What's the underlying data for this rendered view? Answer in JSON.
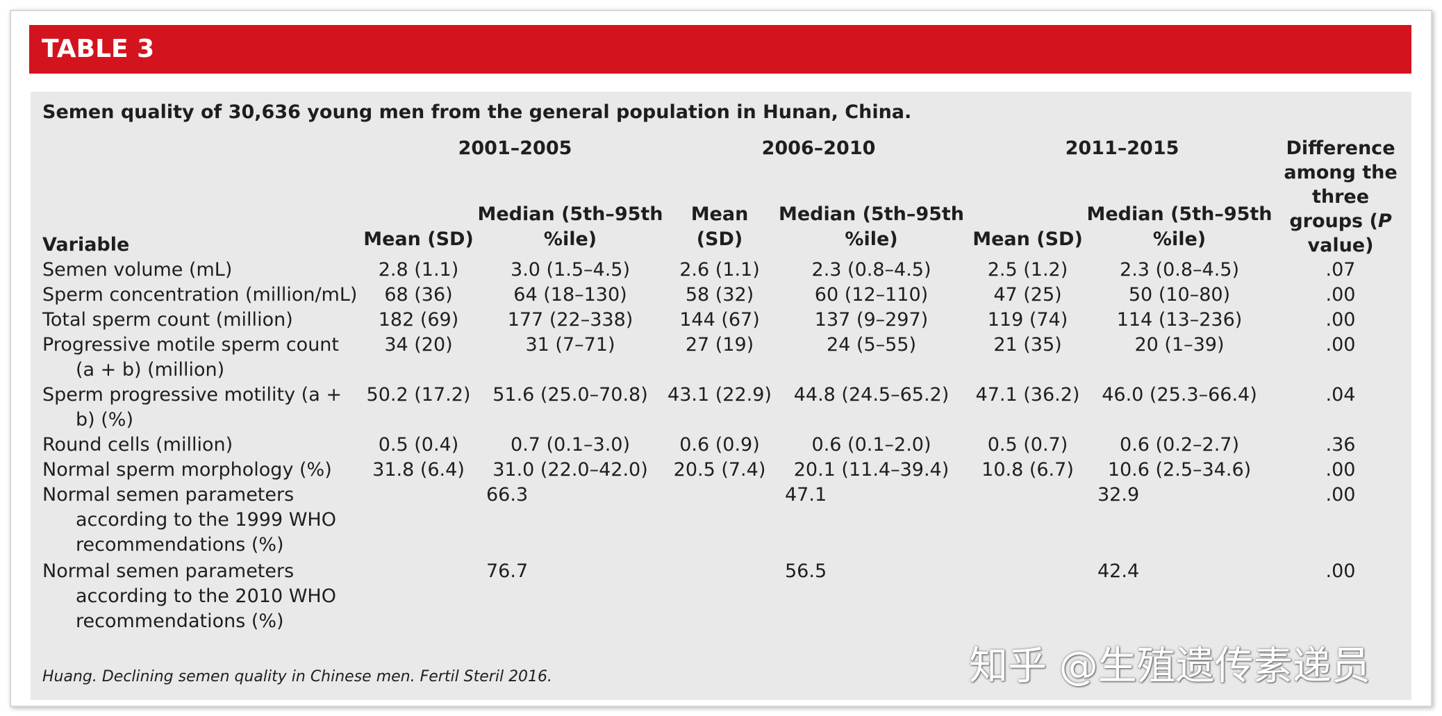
{
  "header": {
    "label": "TABLE 3"
  },
  "caption": "Semen quality of 30,636 young men from the general population in Hunan, China.",
  "table": {
    "periods": [
      "2001–2005",
      "2006–2010",
      "2011–2015"
    ],
    "variable_header": "Variable",
    "period_columns": [
      "Mean (SD)",
      "Median (5th–95th %ile)",
      "Mean (SD)",
      "Median (5th–95th %ile)",
      "Mean (SD)",
      "Median (5th–95th %ile)"
    ],
    "p_header": {
      "before": "Difference among the three groups (",
      "italic": "P",
      "after": " value)"
    },
    "rows": [
      {
        "variable": "Semen volume (mL)",
        "cells": [
          "2.8 (1.1)",
          "3.0 (1.5–4.5)",
          "2.6 (1.1)",
          "2.3 (0.8–4.5)",
          "2.5 (1.2)",
          "2.3 (0.8–4.5)"
        ],
        "p": ".07"
      },
      {
        "variable": "Sperm concentration (million/mL)",
        "cells": [
          "68 (36)",
          "64 (18–130)",
          "58 (32)",
          "60 (12–110)",
          "47 (25)",
          "50 (10–80)"
        ],
        "p": ".00"
      },
      {
        "variable": "Total sperm count (million)",
        "cells": [
          "182 (69)",
          "177 (22–338)",
          "144 (67)",
          "137 (9–297)",
          "119 (74)",
          "114 (13–236)"
        ],
        "p": ".00"
      },
      {
        "variable": "Progressive motile sperm count (a + b) (million)",
        "cells": [
          "34 (20)",
          "31 (7–71)",
          "27 (19)",
          "24 (5–55)",
          "21 (35)",
          "20 (1–39)"
        ],
        "p": ".00"
      },
      {
        "variable": "Sperm progressive motility (a + b) (%)",
        "cells": [
          "50.2 (17.2)",
          "51.6 (25.0–70.8)",
          "43.1 (22.9)",
          "44.8 (24.5–65.2)",
          "47.1 (36.2)",
          "46.0 (25.3–66.4)"
        ],
        "p": ".04"
      },
      {
        "variable": "Round cells (million)",
        "cells": [
          "0.5 (0.4)",
          "0.7 (0.1–3.0)",
          "0.6 (0.9)",
          "0.6 (0.1–2.0)",
          "0.5 (0.7)",
          "0.6 (0.2–2.7)"
        ],
        "p": ".36"
      },
      {
        "variable": "Normal sperm morphology (%)",
        "cells": [
          "31.8 (6.4)",
          "31.0 (22.0–42.0)",
          "20.5 (7.4)",
          "20.1 (11.4–39.4)",
          "10.8 (6.7)",
          "10.6 (2.5–34.6)"
        ],
        "p": ".00"
      },
      {
        "variable": "Normal semen parameters according to the 1999 WHO recommendations (%)",
        "overall": [
          "66.3",
          "47.1",
          "32.9"
        ],
        "p": ".00"
      },
      {
        "variable": "Normal semen parameters according to the 2010 WHO recommendations (%)",
        "overall": [
          "76.7",
          "56.5",
          "42.4"
        ],
        "p": ".00"
      }
    ]
  },
  "footnote": "Huang. Declining semen quality in Chinese men. Fertil Steril 2016.",
  "watermark": "知乎 @生殖遗传素递员"
}
